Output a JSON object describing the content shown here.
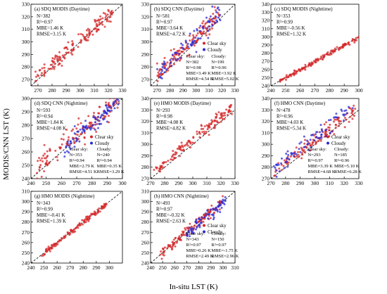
{
  "labels": {
    "ylabel": "MODIS/CNN LST (K)",
    "xlabel": "In-situ LST (K)"
  },
  "colors": {
    "clear": "#d62728",
    "cloudy": "#2b2bd6",
    "line": "#000000"
  },
  "chart_data": [
    {
      "type": "scatter",
      "panel": "a",
      "title": "(a) SDQ MODIS (Daytime)",
      "stats": [
        "N=382",
        "R²=0.97",
        "MBE=1.46 K",
        "RMSE=3.15 K"
      ],
      "xlim": [
        265,
        330
      ],
      "ylim": [
        265,
        330
      ],
      "xticks": [
        270,
        280,
        290,
        300,
        310,
        320,
        330
      ],
      "yticks": [
        270,
        280,
        290,
        300,
        310,
        320,
        330
      ],
      "legend": [],
      "groups": [],
      "series": [
        {
          "color": "clear",
          "range": [
            268,
            323
          ],
          "slope": 1.0,
          "bias": 1.46,
          "spread": 3.1,
          "n": 150
        }
      ]
    },
    {
      "type": "scatter",
      "panel": "b",
      "title": "(b) SDQ CNN (Daytime)",
      "stats": [
        "N=581",
        "R²=0.97",
        "MBE=3.64 K",
        "RMSE=4.72 K"
      ],
      "xlim": [
        265,
        330
      ],
      "ylim": [
        265,
        330
      ],
      "xticks": [
        270,
        280,
        290,
        300,
        310,
        320,
        330
      ],
      "yticks": [
        270,
        280,
        290,
        300,
        310,
        320,
        330
      ],
      "legend": [
        "Clear sky",
        "Cloudy"
      ],
      "groups": [
        {
          "lines": [
            "Clear sky:",
            "N=382",
            "R²=0.98",
            "MBE=3.49 K",
            "RMSE=4.54 K"
          ]
        },
        {
          "lines": [
            "Cloudy:",
            "N=199",
            "R²=0.96",
            "MBE=3.92 K",
            "RMSE=5.02 K"
          ]
        }
      ],
      "series": [
        {
          "color": "clear",
          "range": [
            270,
            318
          ],
          "slope": 1.0,
          "bias": 3.49,
          "spread": 3.4,
          "n": 140
        },
        {
          "color": "cloudy",
          "range": [
            270,
            320
          ],
          "slope": 1.0,
          "bias": 3.92,
          "spread": 4.2,
          "n": 80
        }
      ]
    },
    {
      "type": "scatter",
      "panel": "c",
      "title": "(c) SDQ MODIS (Nighttime)",
      "stats": [
        "N=353",
        "R²=0.99",
        "MBE=-0.56 K",
        "RMSE=1.32 K"
      ],
      "xlim": [
        240,
        300
      ],
      "ylim": [
        240,
        340
      ],
      "xticks": [
        240,
        250,
        260,
        270,
        280,
        290,
        300
      ],
      "yticks": [
        240,
        250,
        260,
        270,
        280,
        290,
        300,
        310,
        320,
        330,
        340
      ],
      "legend": [],
      "groups": [],
      "series": [
        {
          "color": "clear",
          "range": [
            246,
            300
          ],
          "slope": 1.0,
          "bias": -0.56,
          "spread": 1.3,
          "n": 140
        }
      ]
    },
    {
      "type": "scatter",
      "panel": "d",
      "title": "(d) SDQ CNN (Nighttime)",
      "stats": [
        "N=593",
        "R²=0.94",
        "MBE=1.84 K",
        "RMSE=4.08 K"
      ],
      "xlim": [
        240,
        300
      ],
      "ylim": [
        240,
        300
      ],
      "xticks": [
        240,
        250,
        260,
        270,
        280,
        290,
        300
      ],
      "yticks": [
        240,
        250,
        260,
        270,
        280,
        290,
        300
      ],
      "legend": [
        "Clear sky",
        "Cloudy"
      ],
      "groups": [
        {
          "lines": [
            "Clear sky:",
            "N=353",
            "R²=0.94",
            "MBE=2.79 K",
            "RMSE=4.51 K"
          ]
        },
        {
          "lines": [
            "Cloudy:",
            "N=240",
            "R²=0.94",
            "MBE=0.35 K",
            "RMSE=3.29 K"
          ]
        }
      ],
      "series": [
        {
          "color": "clear",
          "range": [
            243,
            298
          ],
          "slope": 1.0,
          "bias": 2.79,
          "spread": 4.4,
          "n": 140
        },
        {
          "color": "cloudy",
          "range": [
            262,
            299
          ],
          "slope": 1.0,
          "bias": 0.35,
          "spread": 3.2,
          "n": 90
        }
      ]
    },
    {
      "type": "scatter",
      "panel": "e",
      "title": "(e) HMO MODIS (Daytime)",
      "stats": [
        "N=293",
        "R²=0.98",
        "MBE=4.08 K",
        "RMSE=4.82 K"
      ],
      "xlim": [
        270,
        330
      ],
      "ylim": [
        270,
        340
      ],
      "xticks": [
        270,
        280,
        290,
        300,
        310,
        320,
        330
      ],
      "yticks": [
        270,
        280,
        290,
        300,
        310,
        320,
        330,
        340
      ],
      "legend": [],
      "groups": [],
      "series": [
        {
          "color": "clear",
          "range": [
            272,
            328
          ],
          "slope": 1.0,
          "bias": 4.08,
          "spread": 2.6,
          "n": 140
        }
      ]
    },
    {
      "type": "scatter",
      "panel": "f",
      "title": "(f) HMO CNN (Daytime)",
      "stats": [
        "N=478",
        "R²=0.96",
        "MBE=4.03 K",
        "RMSE=5.34 K"
      ],
      "xlim": [
        270,
        330
      ],
      "ylim": [
        270,
        340
      ],
      "xticks": [
        270,
        280,
        290,
        300,
        310,
        320,
        330
      ],
      "yticks": [
        270,
        280,
        290,
        300,
        310,
        320,
        330,
        340
      ],
      "legend": [
        "Clear sky",
        "Cloudy"
      ],
      "groups": [
        {
          "lines": [
            "Clear sky:",
            "N=293",
            "R²=0.97",
            "MBE=3.39 K",
            "RMSE=4.68 K"
          ]
        },
        {
          "lines": [
            "Cloudy:",
            "N=185",
            "R²=0.96",
            "MBE=5.10 K",
            "RMSE=6.28 K"
          ]
        }
      ],
      "series": [
        {
          "color": "clear",
          "range": [
            272,
            328
          ],
          "slope": 1.0,
          "bias": 3.39,
          "spread": 3.4,
          "n": 130
        },
        {
          "color": "cloudy",
          "range": [
            272,
            326
          ],
          "slope": 1.0,
          "bias": 5.1,
          "spread": 4.0,
          "n": 80
        }
      ]
    },
    {
      "type": "scatter",
      "panel": "g",
      "title": "(g) HMO MODIS (Nighttime)",
      "stats": [
        "N=343",
        "R²=0.99",
        "MBE=-0.41 K",
        "RMSE=1.39 K"
      ],
      "xlim": [
        240,
        310
      ],
      "ylim": [
        240,
        310
      ],
      "xticks": [
        240,
        250,
        260,
        270,
        280,
        290,
        300
      ],
      "yticks": [
        240,
        250,
        260,
        270,
        280,
        290,
        300,
        310
      ],
      "legend": [],
      "groups": [],
      "series": [
        {
          "color": "clear",
          "range": [
            248,
            298
          ],
          "slope": 1.0,
          "bias": -0.41,
          "spread": 1.4,
          "n": 130
        }
      ]
    },
    {
      "type": "scatter",
      "panel": "h",
      "title": "(h) HMO CNN (Nighttime)",
      "stats": [
        "N=493",
        "R²=0.97",
        "MBE=-0.32 K",
        "RMSE=2.63 K"
      ],
      "xlim": [
        240,
        310
      ],
      "ylim": [
        240,
        310
      ],
      "xticks": [
        240,
        250,
        260,
        270,
        280,
        290,
        300,
        310
      ],
      "yticks": [
        240,
        250,
        260,
        270,
        280,
        290,
        300,
        310
      ],
      "legend": [
        "Clear sky",
        "Cloudy"
      ],
      "groups": [
        {
          "lines": [
            "Clear sky:",
            "N=343",
            "R²=0.97",
            "MBE=0.26 K",
            "RMSE=2.49 K"
          ]
        },
        {
          "lines": [
            "Cloudy:",
            "N=150",
            "R²=0.97",
            "MBE=-1.75 K",
            "RMSE=2.96 K"
          ]
        }
      ],
      "series": [
        {
          "color": "clear",
          "range": [
            248,
            300
          ],
          "slope": 1.0,
          "bias": 0.26,
          "spread": 2.4,
          "n": 130
        },
        {
          "color": "cloudy",
          "range": [
            270,
            302
          ],
          "slope": 1.0,
          "bias": -1.75,
          "spread": 2.9,
          "n": 70
        }
      ]
    }
  ]
}
